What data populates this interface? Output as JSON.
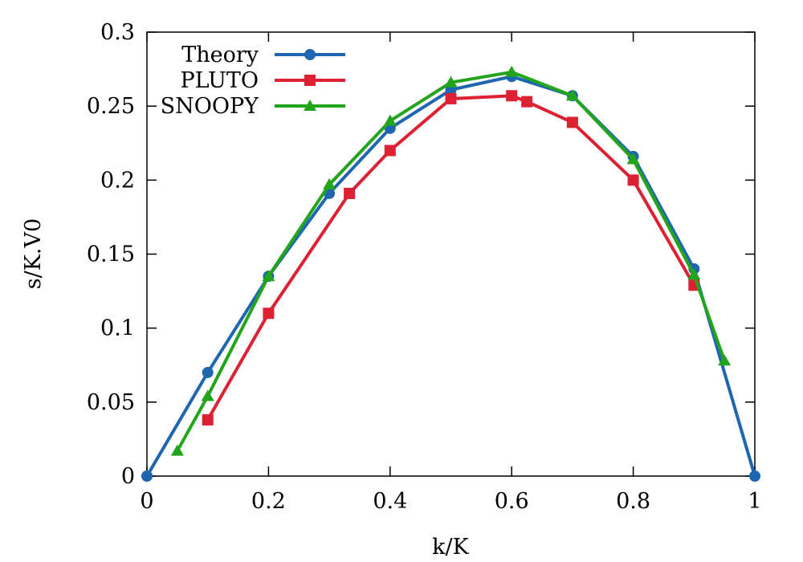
{
  "chart_data": {
    "type": "line",
    "xlabel": "k/K",
    "ylabel": "s/K.V0",
    "xlim": [
      0,
      1
    ],
    "ylim": [
      0,
      0.3
    ],
    "xticks": [
      0,
      0.2,
      0.4,
      0.6,
      0.8,
      1
    ],
    "xtick_labels": [
      "0",
      "0.2",
      "0.4",
      "0.6",
      "0.8",
      "1"
    ],
    "yticks": [
      0,
      0.05,
      0.1,
      0.15,
      0.2,
      0.25,
      0.3
    ],
    "ytick_labels": [
      "0",
      "0.05",
      "0.1",
      "0.15",
      "0.2",
      "0.25",
      "0.3"
    ],
    "grid": false,
    "legend_position": "top-left",
    "series": [
      {
        "name": "Theory",
        "color": "#1f66b0",
        "marker": "circle",
        "x": [
          0,
          0.1,
          0.2,
          0.3,
          0.4,
          0.5,
          0.6,
          0.7,
          0.8,
          0.9,
          1.0
        ],
        "y": [
          0,
          0.07,
          0.135,
          0.191,
          0.235,
          0.261,
          0.27,
          0.257,
          0.216,
          0.14,
          0
        ]
      },
      {
        "name": "PLUTO",
        "color": "#dd2032",
        "marker": "square",
        "x": [
          0.1,
          0.2,
          0.333,
          0.4,
          0.5,
          0.6,
          0.625,
          0.7,
          0.8,
          0.9
        ],
        "y": [
          0.038,
          0.11,
          0.191,
          0.22,
          0.255,
          0.257,
          0.253,
          0.239,
          0.2,
          0.129
        ]
      },
      {
        "name": "SNOOPY",
        "color": "#22a51c",
        "marker": "triangle",
        "x": [
          0.05,
          0.1,
          0.2,
          0.3,
          0.4,
          0.5,
          0.6,
          0.7,
          0.8,
          0.9,
          0.95
        ],
        "y": [
          0.017,
          0.054,
          0.135,
          0.197,
          0.24,
          0.266,
          0.273,
          0.257,
          0.214,
          0.136,
          0.078
        ]
      }
    ]
  }
}
